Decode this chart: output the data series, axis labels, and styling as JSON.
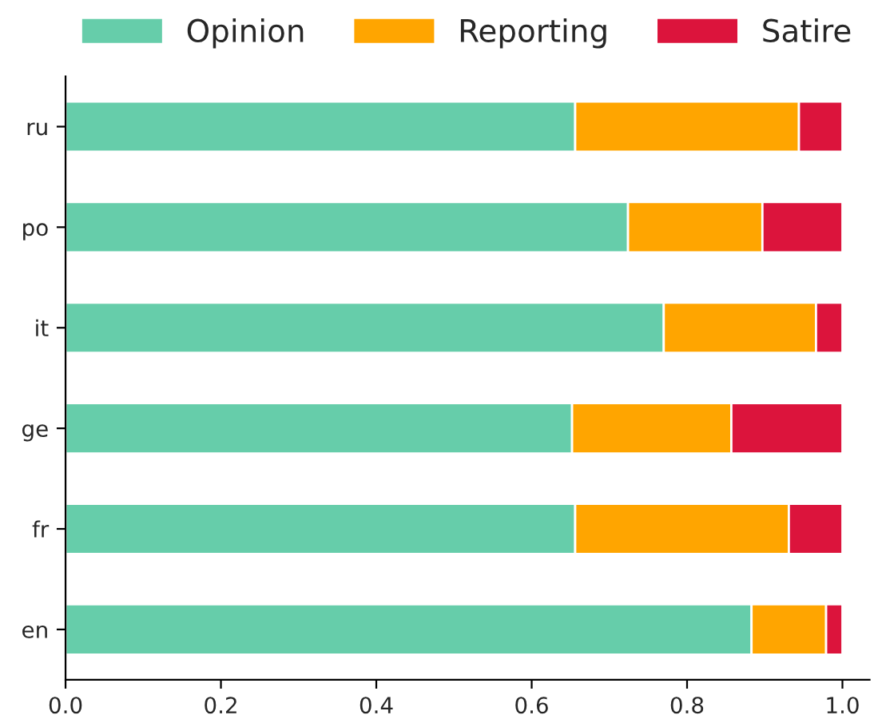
{
  "chart_data": {
    "type": "bar",
    "orientation": "horizontal",
    "stacked": true,
    "categories": [
      "ru",
      "po",
      "it",
      "ge",
      "fr",
      "en"
    ],
    "series": [
      {
        "name": "Opinion",
        "color": "#66cdaa",
        "values": [
          0.656,
          0.724,
          0.77,
          0.652,
          0.656,
          0.883
        ]
      },
      {
        "name": "Reporting",
        "color": "#ffa500",
        "values": [
          0.288,
          0.173,
          0.196,
          0.205,
          0.275,
          0.096
        ]
      },
      {
        "name": "Satire",
        "color": "#dc143c",
        "values": [
          0.056,
          0.103,
          0.034,
          0.143,
          0.069,
          0.021
        ]
      }
    ],
    "xlim": [
      0,
      1.035
    ],
    "xticks": [
      {
        "value": 0,
        "label": "0.0"
      },
      0.2,
      0.4,
      0.6,
      0.8,
      {
        "value": 1,
        "label": "1.0"
      }
    ],
    "legend": "top",
    "grid": false
  }
}
